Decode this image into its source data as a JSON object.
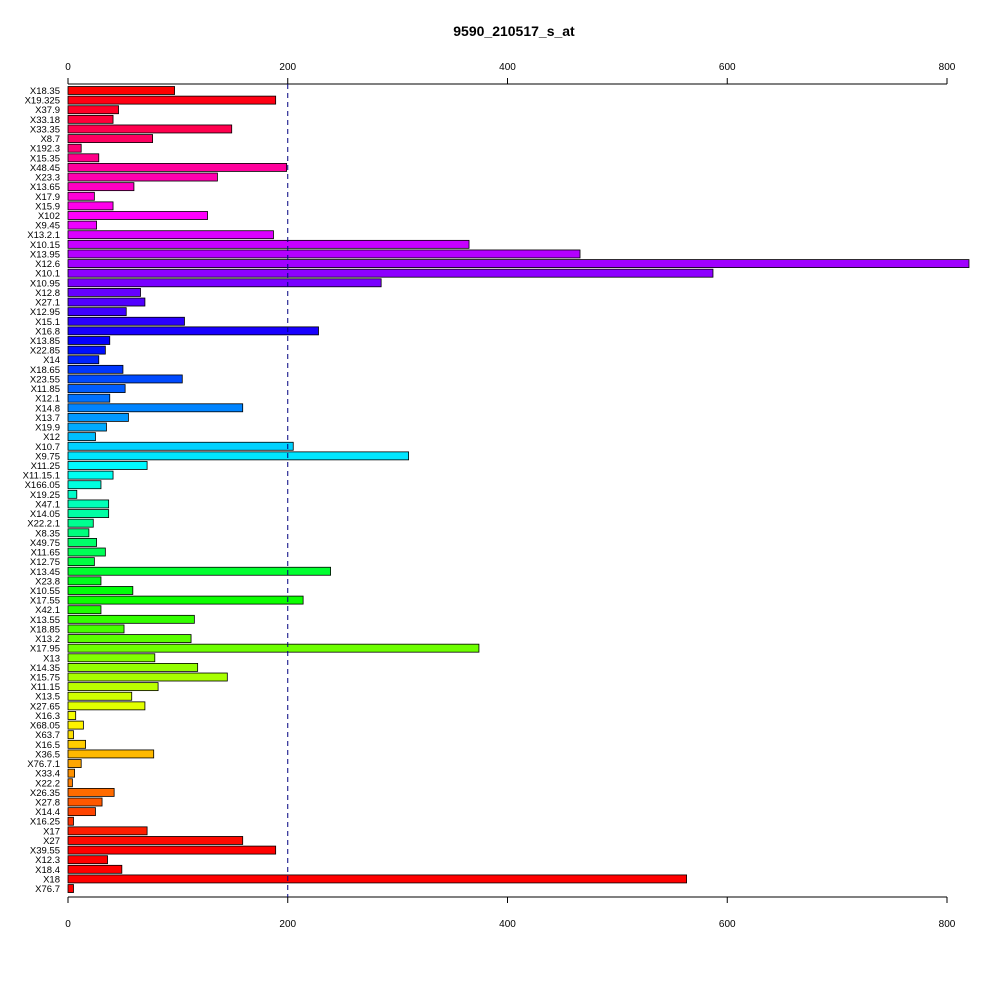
{
  "chart_data": {
    "type": "bar",
    "orientation": "horizontal",
    "title": "9590_210517_s_at",
    "xlabel": "",
    "ylabel": "",
    "xlim": [
      0,
      820
    ],
    "x_ticks": [
      0,
      200,
      400,
      600,
      800
    ],
    "reference_line": 200,
    "axes": "top-and-bottom",
    "grid": false,
    "legend": "none",
    "categories": [
      "X18.35",
      "X19.325",
      "X37.9",
      "X33.18",
      "X33.35",
      "X8.7",
      "X192.3",
      "X15.35",
      "X48.45",
      "X23.3",
      "X13.65",
      "X17.9",
      "X15.9",
      "X102",
      "X9.45",
      "X13.2.1",
      "X10.15",
      "X13.95",
      "X12.6",
      "X10.1",
      "X10.95",
      "X12.8",
      "X27.1",
      "X12.95",
      "X15.1",
      "X16.8",
      "X13.85",
      "X22.85",
      "X14",
      "X18.65",
      "X23.55",
      "X11.85",
      "X12.1",
      "X14.8",
      "X13.7",
      "X19.9",
      "X12",
      "X10.7",
      "X9.75",
      "X11.25",
      "X11.15.1",
      "X166.05",
      "X19.25",
      "X47.1",
      "X14.05",
      "X22.2.1",
      "X8.35",
      "X49.75",
      "X11.65",
      "X12.75",
      "X13.45",
      "X23.8",
      "X10.55",
      "X17.55",
      "X42.1",
      "X13.55",
      "X18.85",
      "X13.2",
      "X17.95",
      "X13",
      "X14.35",
      "X15.75",
      "X11.15",
      "X13.5",
      "X27.65",
      "X16.3",
      "X68.05",
      "X63.7",
      "X16.5",
      "X36.5",
      "X76.7.1",
      "X33.4",
      "X22.2",
      "X26.35",
      "X27.8",
      "X14.4",
      "X16.25",
      "X17",
      "X27",
      "X39.55",
      "X12.3",
      "X18.4",
      "X18",
      "X76.7"
    ],
    "values": [
      97,
      189,
      46,
      41,
      149,
      77,
      12,
      28,
      199,
      136,
      60,
      24,
      41,
      127,
      26,
      187,
      365,
      466,
      822,
      587,
      285,
      66,
      70,
      53,
      106,
      228,
      38,
      34,
      28,
      50,
      104,
      52,
      38,
      159,
      55,
      35,
      25,
      205,
      310,
      72,
      41,
      30,
      8,
      37,
      37,
      23,
      19,
      26,
      34,
      24,
      239,
      30,
      59,
      214,
      30,
      115,
      51,
      112,
      374,
      79,
      118,
      145,
      82,
      58,
      70,
      7,
      14,
      5,
      16,
      78,
      12,
      6,
      4,
      42,
      31,
      25,
      5,
      72,
      159,
      189,
      36,
      49,
      563,
      5
    ],
    "colors": [
      "#FF0000",
      "#FF0013",
      "#FF0027",
      "#FF003A",
      "#FF004E",
      "#FF0061",
      "#FF0075",
      "#FF0088",
      "#FF009C",
      "#FF00AF",
      "#FF00C3",
      "#FF00D6",
      "#FF00EA",
      "#FF00FD",
      "#EE00FF",
      "#DB00FF",
      "#C700FF",
      "#B400FF",
      "#A000FF",
      "#8D00FF",
      "#7900FF",
      "#6600FF",
      "#5200FF",
      "#3F00FF",
      "#2B00FF",
      "#1800FF",
      "#0400FF",
      "#000FFF",
      "#0023FF",
      "#0036FF",
      "#004AFF",
      "#005DFF",
      "#0071FF",
      "#0084FF",
      "#0098FF",
      "#00ABFF",
      "#00BFFF",
      "#00D2FF",
      "#00E6FF",
      "#00F9FF",
      "#00FFF2",
      "#00FFDF",
      "#00FFCB",
      "#00FFB8",
      "#00FFA4",
      "#00FF91",
      "#00FF7D",
      "#00FF6A",
      "#00FF56",
      "#00FF43",
      "#00FF2F",
      "#00FF1C",
      "#00FF08",
      "#0CFF00",
      "#1FFF00",
      "#33FF00",
      "#46FF00",
      "#5AFF00",
      "#6DFF00",
      "#81FF00",
      "#94FF00",
      "#A8FF00",
      "#BBFF00",
      "#CFFF00",
      "#E2FF00",
      "#F6FF00",
      "#FFF400",
      "#FFE000",
      "#FFCD00",
      "#FFB900",
      "#FFA600",
      "#FF9200",
      "#FF7F00",
      "#FF6B00",
      "#FF5800",
      "#FF4400",
      "#FF3100",
      "#FF1D00",
      "#FF0A00",
      "#FF0000",
      "#FF0000",
      "#FF0000",
      "#FF0000",
      "#FF0000"
    ]
  }
}
